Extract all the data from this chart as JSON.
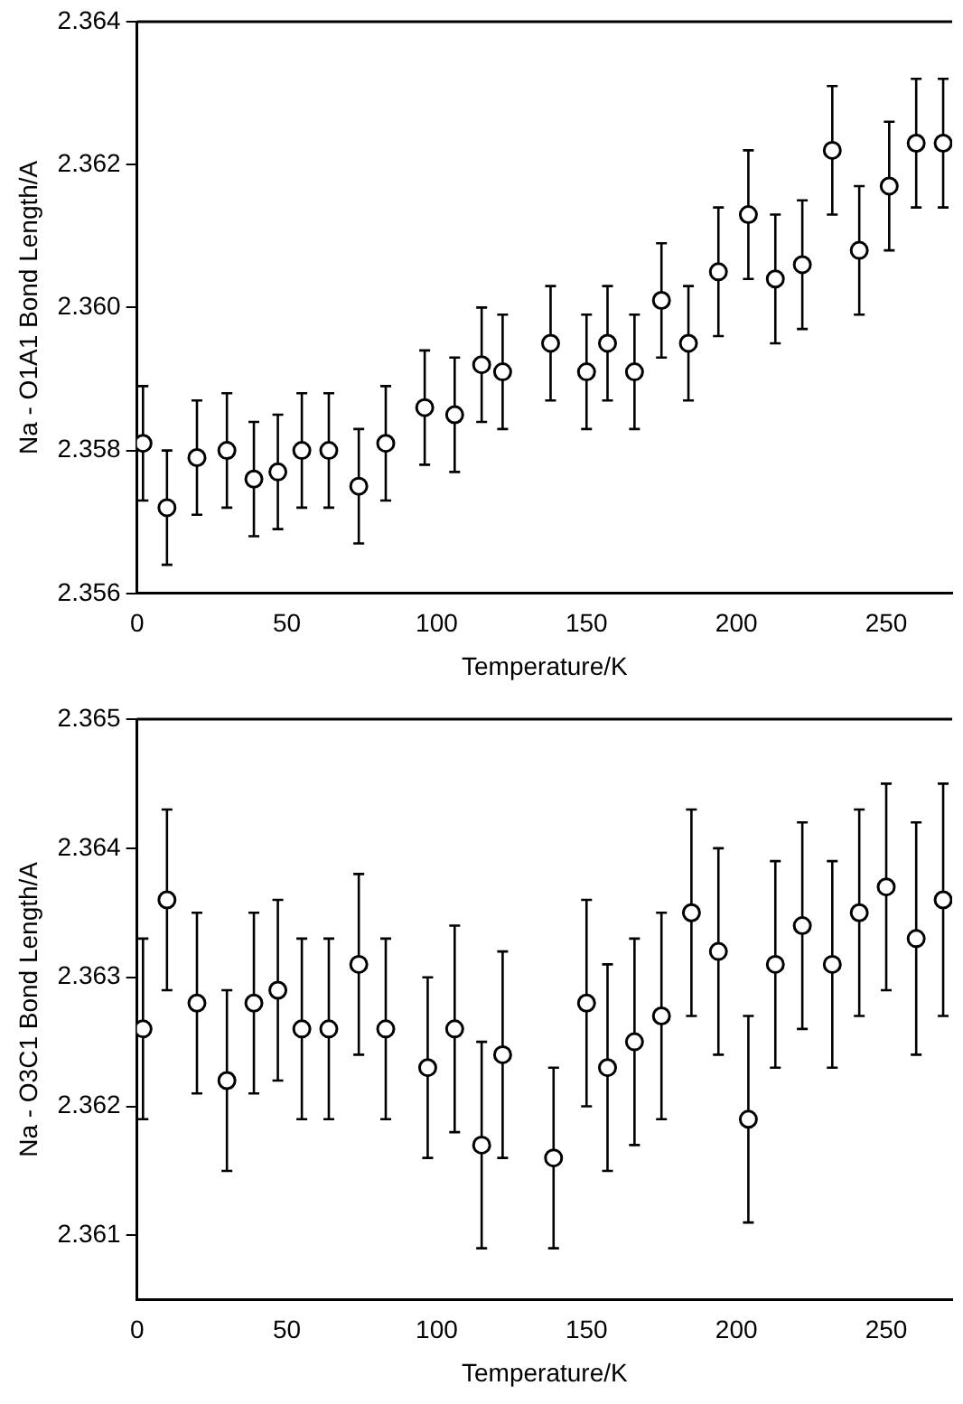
{
  "chart_data": [
    {
      "type": "scatter",
      "xlabel": "Temperature/K",
      "ylabel": "Na - O1A1 Bond Length/A",
      "marker": "circle",
      "grid": false,
      "xlim": [
        0,
        272
      ],
      "xticks": [
        0,
        50,
        100,
        150,
        200,
        250
      ],
      "ylim": [
        2.356,
        2.364
      ],
      "yticks": [
        2.356,
        2.358,
        {
          "value": 2.36,
          "label": "2.360"
        },
        2.362,
        2.364
      ],
      "x": [
        2,
        10,
        20,
        30,
        39,
        47,
        55,
        64,
        74,
        83,
        96,
        106,
        115,
        122,
        138,
        150,
        157,
        166,
        175,
        184,
        194,
        204,
        213,
        222,
        232,
        241,
        251,
        260,
        269
      ],
      "values": [
        2.3581,
        2.3572,
        2.3579,
        2.358,
        2.3576,
        2.3577,
        2.358,
        2.358,
        2.3575,
        2.3581,
        2.3586,
        2.3585,
        2.3592,
        2.3591,
        2.3595,
        2.3591,
        2.3595,
        2.3591,
        2.3601,
        2.3595,
        2.3605,
        2.3613,
        2.3604,
        2.3606,
        2.3622,
        2.3608,
        2.3617,
        2.3623,
        2.3623
      ],
      "errors": [
        0.0008,
        0.0008,
        0.0008,
        0.0008,
        0.0008,
        0.0008,
        0.0008,
        0.0008,
        0.0008,
        0.0008,
        0.0008,
        0.0008,
        0.0008,
        0.0008,
        0.0008,
        0.0008,
        0.0008,
        0.0008,
        0.0008,
        0.0008,
        0.0009,
        0.0009,
        0.0009,
        0.0009,
        0.0009,
        0.0009,
        0.0009,
        0.0009,
        0.0009
      ]
    },
    {
      "type": "scatter",
      "xlabel": "Temperature/K",
      "ylabel": "Na - O3C1 Bond Length/A",
      "marker": "circle",
      "grid": false,
      "xlim": [
        0,
        272
      ],
      "xticks": [
        0,
        50,
        100,
        150,
        200,
        250
      ],
      "ylim": [
        2.3605,
        2.365
      ],
      "yticks": [
        2.361,
        2.362,
        2.363,
        2.364,
        2.365
      ],
      "x": [
        2,
        10,
        20,
        30,
        39,
        47,
        55,
        64,
        74,
        83,
        97,
        106,
        115,
        122,
        139,
        150,
        157,
        166,
        175,
        185,
        194,
        204,
        213,
        222,
        232,
        241,
        250,
        260,
        269
      ],
      "values": [
        2.3626,
        2.3636,
        2.3628,
        2.3622,
        2.3628,
        2.3629,
        2.3626,
        2.3626,
        2.3631,
        2.3626,
        2.3623,
        2.3626,
        2.3617,
        2.3624,
        2.3616,
        2.3628,
        2.3623,
        2.3625,
        2.3627,
        2.3635,
        2.3632,
        2.3619,
        2.3631,
        2.3634,
        2.3631,
        2.3635,
        2.3637,
        2.3633,
        2.3636
      ],
      "errors": [
        0.0007,
        0.0007,
        0.0007,
        0.0007,
        0.0007,
        0.0007,
        0.0007,
        0.0007,
        0.0007,
        0.0007,
        0.0007,
        0.0008,
        0.0008,
        0.0008,
        0.0007,
        0.0008,
        0.0008,
        0.0008,
        0.0008,
        0.0008,
        0.0008,
        0.0008,
        0.0008,
        0.0008,
        0.0008,
        0.0008,
        0.0008,
        0.0009,
        0.0009
      ]
    }
  ]
}
